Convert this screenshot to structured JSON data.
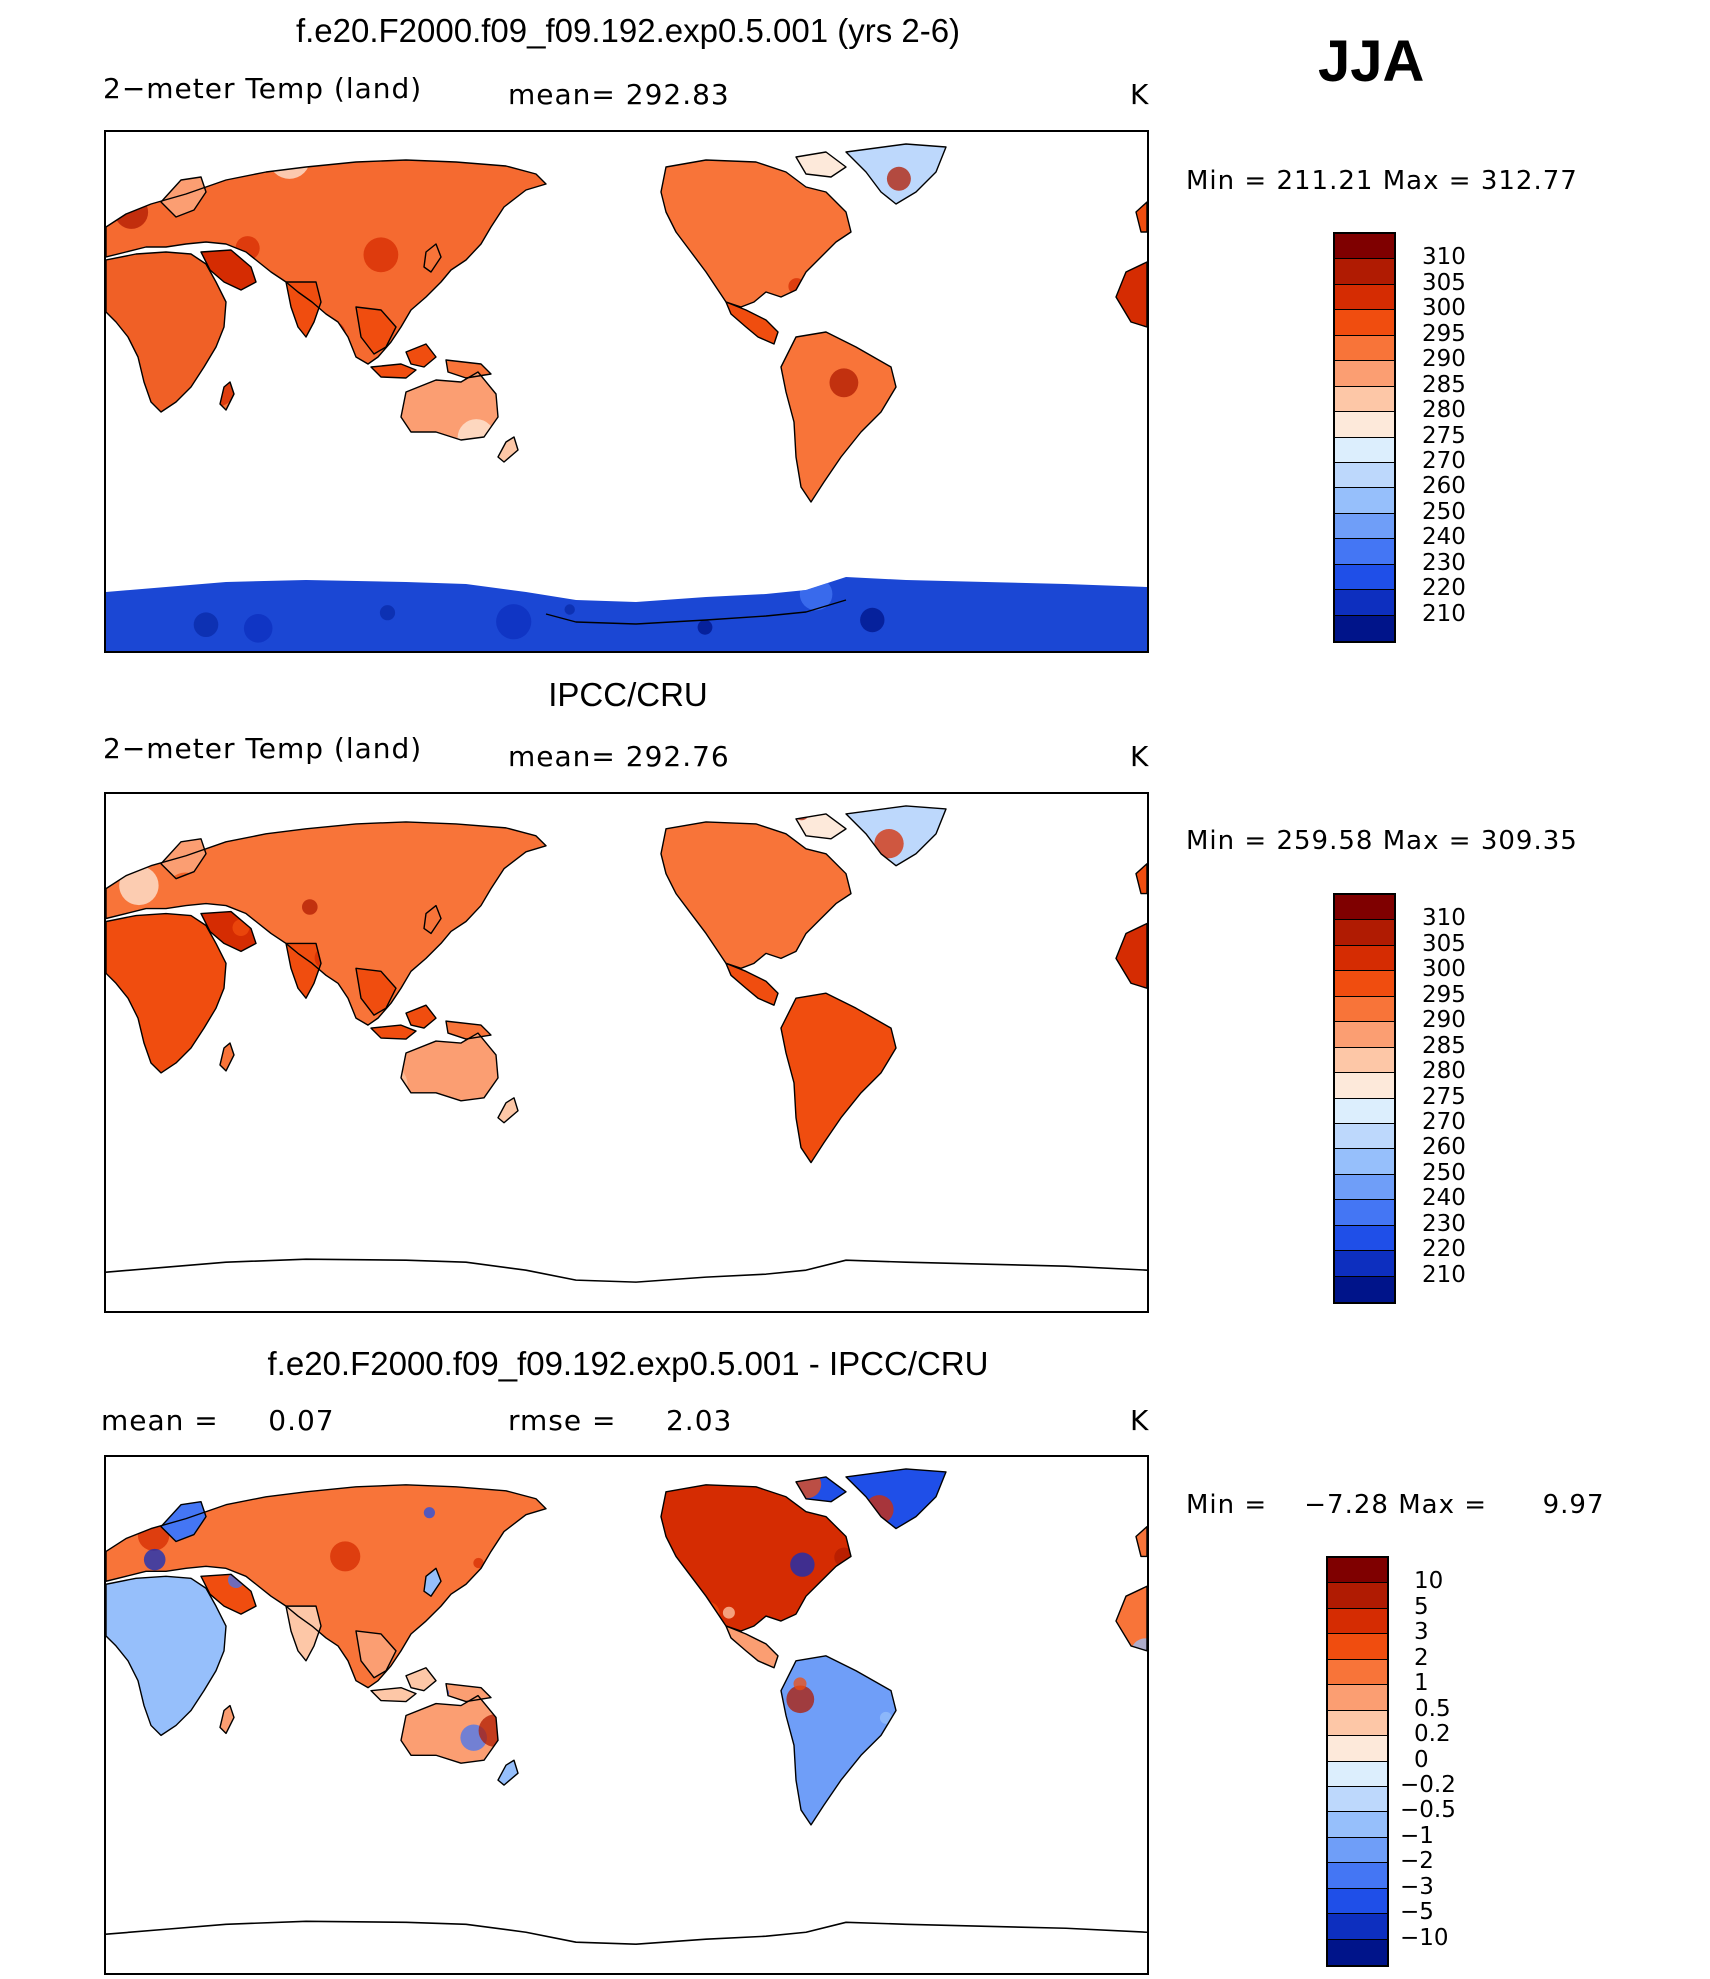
{
  "season": "JJA",
  "panels": [
    {
      "title": "f.e20.F2000.f09_f09.192.exp0.5.001 (yrs 2-6)",
      "left_label": "2−meter Temp (land)",
      "mid_label": "mean= 292.83",
      "units": "K",
      "min_label": "Min",
      "min_value": "211.21",
      "max_label": "Max",
      "max_value": "312.77",
      "map_variant": "model",
      "colorbar": {
        "labels": [
          "310",
          "305",
          "300",
          "295",
          "290",
          "285",
          "280",
          "275",
          "270",
          "260",
          "250",
          "240",
          "230",
          "220",
          "210"
        ],
        "colors": [
          "#7f0000",
          "#b01b02",
          "#d52c02",
          "#f04d0f",
          "#f87439",
          "#fb9e72",
          "#fdc7a7",
          "#fde9da",
          "#dceefd",
          "#bdd8fc",
          "#96bffb",
          "#6f9ef8",
          "#4476f4",
          "#1f4fe8",
          "#0d2fbf",
          "#00148a"
        ]
      },
      "series_colors": {
        "ocean": "#ffffff",
        "antarctica": "#1b47d4",
        "antarctica_dark": "#0a2aa8"
      }
    },
    {
      "title": "IPCC/CRU",
      "left_label": "2−meter Temp (land)",
      "mid_label": "mean= 292.76",
      "units": "K",
      "min_label": "Min",
      "min_value": "259.58",
      "max_label": "Max",
      "max_value": "309.35",
      "map_variant": "obs",
      "colorbar": {
        "labels": [
          "310",
          "305",
          "300",
          "295",
          "290",
          "285",
          "280",
          "275",
          "270",
          "260",
          "250",
          "240",
          "230",
          "220",
          "210"
        ],
        "colors": [
          "#7f0000",
          "#b01b02",
          "#d52c02",
          "#f04d0f",
          "#f87439",
          "#fb9e72",
          "#fdc7a7",
          "#fde9da",
          "#dceefd",
          "#bdd8fc",
          "#96bffb",
          "#6f9ef8",
          "#4476f4",
          "#1f4fe8",
          "#0d2fbf",
          "#00148a"
        ]
      }
    },
    {
      "title": "f.e20.F2000.f09_f09.192.exp0.5.001 - IPCC/CRU",
      "left_label": "mean =     0.07",
      "mid_label": "rmse =     2.03",
      "units": "K",
      "min_label": "Min",
      "min_value": "−7.28",
      "max_label": "Max",
      "max_value": "9.97",
      "map_variant": "diff",
      "colorbar": {
        "labels": [
          "10",
          "5",
          "3",
          "2",
          "1",
          "0.5",
          "0.2",
          "0",
          "−0.2",
          "−0.5",
          "−1",
          "−2",
          "−3",
          "−5",
          "−10"
        ],
        "colors": [
          "#7f0000",
          "#b01b02",
          "#d52c02",
          "#f04d0f",
          "#f87439",
          "#fb9e72",
          "#fdc7a7",
          "#fde9da",
          "#dceefd",
          "#bdd8fc",
          "#96bffb",
          "#6f9ef8",
          "#4476f4",
          "#1f4fe8",
          "#0d2fbf",
          "#00148a"
        ]
      }
    }
  ]
}
